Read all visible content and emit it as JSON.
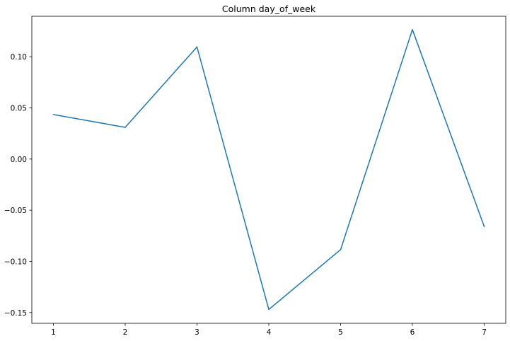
{
  "chart_data": {
    "type": "line",
    "title": "Column day_of_week",
    "xlabel": "",
    "ylabel": "",
    "x": [
      1,
      2,
      3,
      4,
      5,
      6,
      7
    ],
    "series": [
      {
        "values": [
          0.0435,
          0.031,
          0.1095,
          -0.147,
          -0.0885,
          0.1265,
          -0.066
        ],
        "color": "#1f77b4"
      }
    ],
    "xlim": [
      0.7,
      7.3
    ],
    "ylim": [
      -0.1605,
      0.1395
    ],
    "x_ticks": [
      "1",
      "2",
      "3",
      "4",
      "5",
      "6",
      "7"
    ],
    "y_ticks": [
      {
        "value": -0.15,
        "label": "−0.15"
      },
      {
        "value": -0.1,
        "label": "−0.10"
      },
      {
        "value": -0.05,
        "label": "−0.05"
      },
      {
        "value": 0.0,
        "label": "0.00"
      },
      {
        "value": 0.05,
        "label": "0.05"
      },
      {
        "value": 0.1,
        "label": "0.10"
      }
    ],
    "grid": false,
    "legend": "none"
  }
}
